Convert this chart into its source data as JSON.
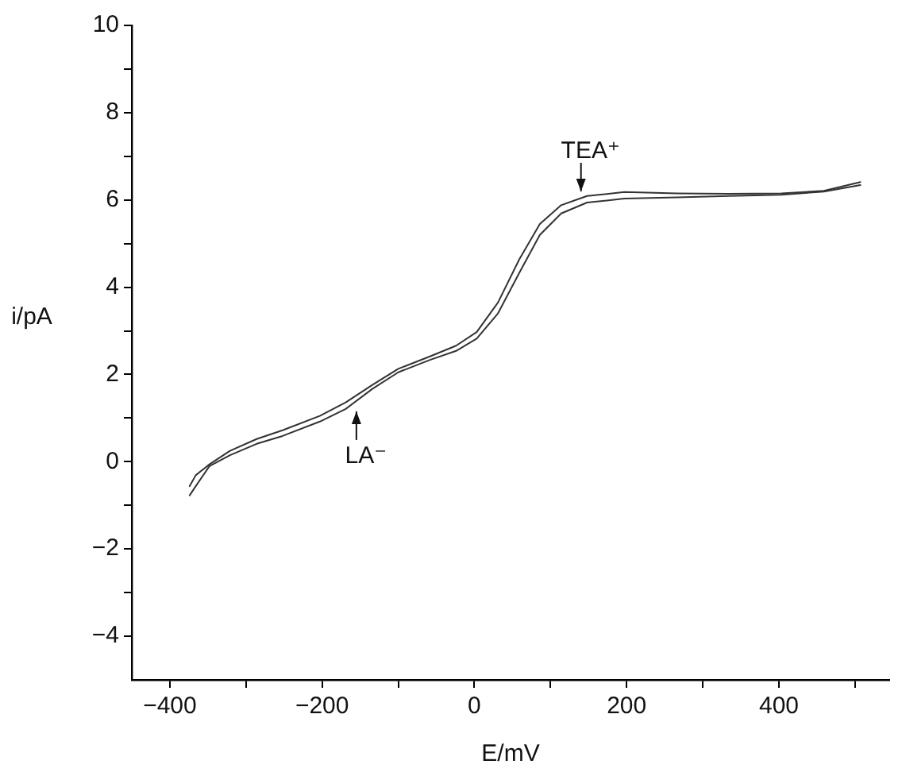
{
  "chart_data": {
    "type": "line",
    "xlabel": "E/mV",
    "ylabel": "i/pA",
    "xlim": [
      -450,
      545
    ],
    "ylim": [
      -5,
      10
    ],
    "xticks": [
      -400,
      {
        "value": -300,
        "label": null
      },
      -200,
      {
        "value": -100,
        "label": null
      },
      0,
      {
        "value": 100,
        "label": null
      },
      200,
      {
        "value": 300,
        "label": null
      },
      400,
      {
        "value": 500,
        "label": null
      }
    ],
    "yticks": [
      -4,
      {
        "value": -3,
        "label": null
      },
      -2,
      {
        "value": -1,
        "label": null
      },
      0,
      {
        "value": 1,
        "label": null
      },
      2,
      {
        "value": 3,
        "label": null
      },
      4,
      {
        "value": 5,
        "label": null
      },
      6,
      {
        "value": 7,
        "label": null
      },
      8,
      {
        "value": 9,
        "label": null
      },
      10
    ],
    "grid": false,
    "legend": false,
    "marker": "none",
    "line_style": "solid",
    "annotations": [
      {
        "text": "TEA⁺",
        "x": 140,
        "y": 6.05
      },
      {
        "text": "LA⁻",
        "x": -155,
        "y": 1.3
      }
    ],
    "series": [
      {
        "color": "#333333",
        "x": [
          -374,
          -366,
          -348,
          -321,
          -286,
          -252,
          -203,
          -169,
          -134,
          -100,
          -59,
          -24,
          3,
          31,
          59,
          86,
          114,
          148,
          197,
          266,
          334,
          403,
          459,
          507
        ],
        "values": [
          -0.56,
          -0.31,
          -0.06,
          0.25,
          0.52,
          0.72,
          1.05,
          1.36,
          1.76,
          2.13,
          2.41,
          2.66,
          2.97,
          3.65,
          4.64,
          5.45,
          5.88,
          6.09,
          6.18,
          6.15,
          6.14,
          6.15,
          6.21,
          6.41
        ]
      },
      {
        "color": "#333333",
        "x": [
          -374,
          -366,
          -348,
          -321,
          -286,
          -252,
          -203,
          -169,
          -134,
          -100,
          -59,
          -24,
          3,
          31,
          59,
          86,
          114,
          148,
          197,
          266,
          334,
          403,
          459,
          507
        ],
        "values": [
          -0.77,
          -0.56,
          -0.1,
          0.15,
          0.41,
          0.59,
          0.92,
          1.21,
          1.67,
          2.05,
          2.33,
          2.54,
          2.82,
          3.4,
          4.33,
          5.2,
          5.69,
          5.94,
          6.03,
          6.06,
          6.09,
          6.12,
          6.19,
          6.34
        ]
      }
    ]
  }
}
